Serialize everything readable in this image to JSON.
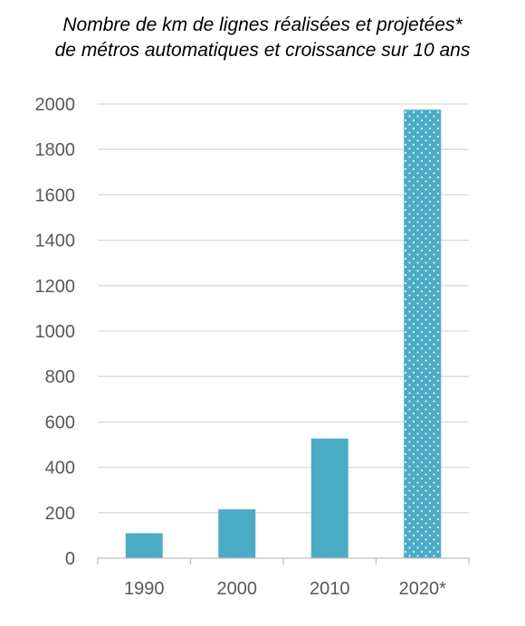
{
  "chart_data": {
    "type": "bar",
    "title": [
      "Nombre de km de lignes réalisées et projetées*",
      "de métros automatiques et croissance sur 10 ans"
    ],
    "xlabel": "",
    "ylabel": "",
    "categories": [
      "1990",
      "2000",
      "2010",
      "2020*"
    ],
    "values": [
      110,
      215,
      527,
      1975
    ],
    "ylim": [
      0,
      2000
    ],
    "yticks": [
      "0",
      "200",
      "400",
      "600",
      "800",
      "1000",
      "1200",
      "1400",
      "1600",
      "1800",
      "2000"
    ],
    "grid": true,
    "legend": "none",
    "colors": {
      "bar": "#4bacc6",
      "dots": "#ffffff",
      "grid": "#d9d9d9",
      "axis": "#bfbfbf",
      "tick_text": "#595959"
    },
    "patterns": [
      "solid",
      "solid",
      "solid",
      "dotted"
    ]
  }
}
